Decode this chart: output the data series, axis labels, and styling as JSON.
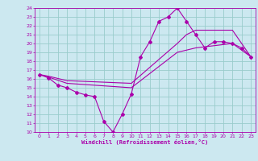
{
  "xlabel": "Windchill (Refroidissement éolien,°C)",
  "bg_color": "#cce8f0",
  "grid_color": "#99cccc",
  "line_color": "#aa00aa",
  "xlim": [
    -0.5,
    23.5
  ],
  "ylim": [
    10,
    24
  ],
  "xticks": [
    0,
    1,
    2,
    3,
    4,
    5,
    6,
    7,
    8,
    9,
    10,
    11,
    12,
    13,
    14,
    15,
    16,
    17,
    18,
    19,
    20,
    21,
    22,
    23
  ],
  "yticks": [
    10,
    11,
    12,
    13,
    14,
    15,
    16,
    17,
    18,
    19,
    20,
    21,
    22,
    23,
    24
  ],
  "line1": {
    "x": [
      0,
      1,
      2,
      3,
      4,
      5,
      6,
      7,
      8,
      9,
      10,
      11,
      12,
      13,
      14,
      15,
      16,
      17,
      18,
      19,
      20,
      21,
      22,
      23
    ],
    "y": [
      16.5,
      16.1,
      15.3,
      15.0,
      14.5,
      14.2,
      14.0,
      11.2,
      10.0,
      12.0,
      14.3,
      18.5,
      20.2,
      22.5,
      23.0,
      24.0,
      22.5,
      21.0,
      19.5,
      20.2,
      20.2,
      20.0,
      19.5,
      18.5
    ]
  },
  "line2": {
    "x": [
      0,
      1,
      3,
      10,
      15,
      17,
      21,
      23
    ],
    "y": [
      16.5,
      16.2,
      15.5,
      15.0,
      19.0,
      19.5,
      20.0,
      18.5
    ]
  },
  "line3": {
    "x": [
      0,
      1,
      3,
      10,
      15,
      16,
      17,
      21,
      23
    ],
    "y": [
      16.5,
      16.3,
      15.8,
      15.5,
      20.0,
      21.0,
      21.5,
      21.5,
      18.5
    ]
  }
}
